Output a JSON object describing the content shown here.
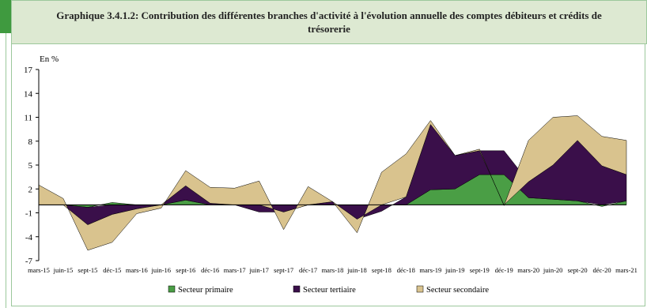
{
  "chart_data": {
    "type": "area",
    "title": "Graphique 3.4.1.2: Contribution des différentes branches d'activité à l'évolution annuelle des comptes débiteurs et crédits de trésorerie",
    "ylabel": "En %",
    "ylim": [
      -7,
      17
    ],
    "yticks": [
      -7,
      -4,
      -1,
      2,
      5,
      8,
      11,
      14,
      17
    ],
    "categories": [
      "mars-15",
      "juin-15",
      "sept-15",
      "déc-15",
      "mars-16",
      "juin-16",
      "sept-16",
      "déc-16",
      "mars-17",
      "juin-17",
      "sept-17",
      "déc-17",
      "mars-18",
      "juin-18",
      "sept-18",
      "déc-18",
      "mars-19",
      "juin-19",
      "sept-19",
      "déc-19",
      "mars-20",
      "juin-20",
      "sept-20",
      "déc-20",
      "mars-21"
    ],
    "series": [
      {
        "name": "Secteur primaire",
        "color": "#4a9e45",
        "values": [
          0.0,
          0.0,
          -0.3,
          0.3,
          0.0,
          0.0,
          0.6,
          0.0,
          0.0,
          0.0,
          0.0,
          0.0,
          0.0,
          0.0,
          0.0,
          0.0,
          1.9,
          2.0,
          3.8,
          3.8,
          0.9,
          0.7,
          0.5,
          -0.2,
          0.5
        ]
      },
      {
        "name": "Secteur tertiaire",
        "color": "#3a0f4a",
        "values": [
          0.0,
          0.0,
          -2.2,
          -1.2,
          -0.5,
          0.0,
          1.8,
          0.2,
          0.0,
          -0.9,
          -0.9,
          0.0,
          0.4,
          -1.8,
          -0.8,
          1.0,
          8.2,
          4.2,
          3.0,
          3.0,
          2.0,
          4.3,
          7.6,
          4.9,
          3.3
        ]
      },
      {
        "name": "Secteur secondaire",
        "color": "#d9c38e",
        "values": [
          2.5,
          0.8,
          -3.2,
          -3.5,
          -0.6,
          -0.4,
          1.9,
          2.0,
          2.1,
          3.0,
          -2.2,
          2.3,
          0.0,
          -1.7,
          4.1,
          5.4,
          0.5,
          0.0,
          0.2,
          -0.1,
          5.2,
          6.0,
          3.1,
          3.7,
          4.3
        ]
      }
    ],
    "legend_position": "bottom",
    "grid": false
  }
}
